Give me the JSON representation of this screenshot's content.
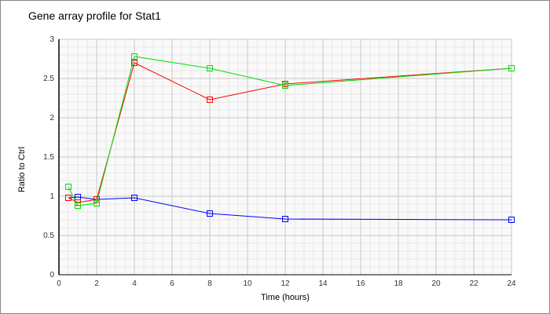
{
  "chart_data": {
    "type": "line",
    "title": "Gene array profile for Stat1",
    "xlabel": "Time (hours)",
    "ylabel": "Ratio to Ctrl",
    "xlim": [
      0,
      24
    ],
    "ylim": [
      0,
      3
    ],
    "xticks": [
      0,
      2,
      4,
      6,
      8,
      10,
      12,
      14,
      16,
      18,
      20,
      22,
      24
    ],
    "yticks": [
      0,
      0.5,
      1,
      1.5,
      2,
      2.5,
      3
    ],
    "grid": true,
    "x": [
      0.5,
      1,
      2,
      4,
      8,
      12,
      24
    ],
    "series": [
      {
        "color": "#0000ff",
        "values": [
          0.98,
          0.99,
          0.96,
          0.98,
          0.78,
          0.71,
          0.7
        ]
      },
      {
        "color": "#ff0000",
        "values": [
          0.98,
          0.92,
          0.96,
          2.7,
          2.23,
          2.43,
          2.63
        ]
      },
      {
        "color": "#00e000",
        "values": [
          1.12,
          0.88,
          0.91,
          2.78,
          2.63,
          2.41,
          2.63
        ]
      }
    ],
    "marker": "square"
  }
}
